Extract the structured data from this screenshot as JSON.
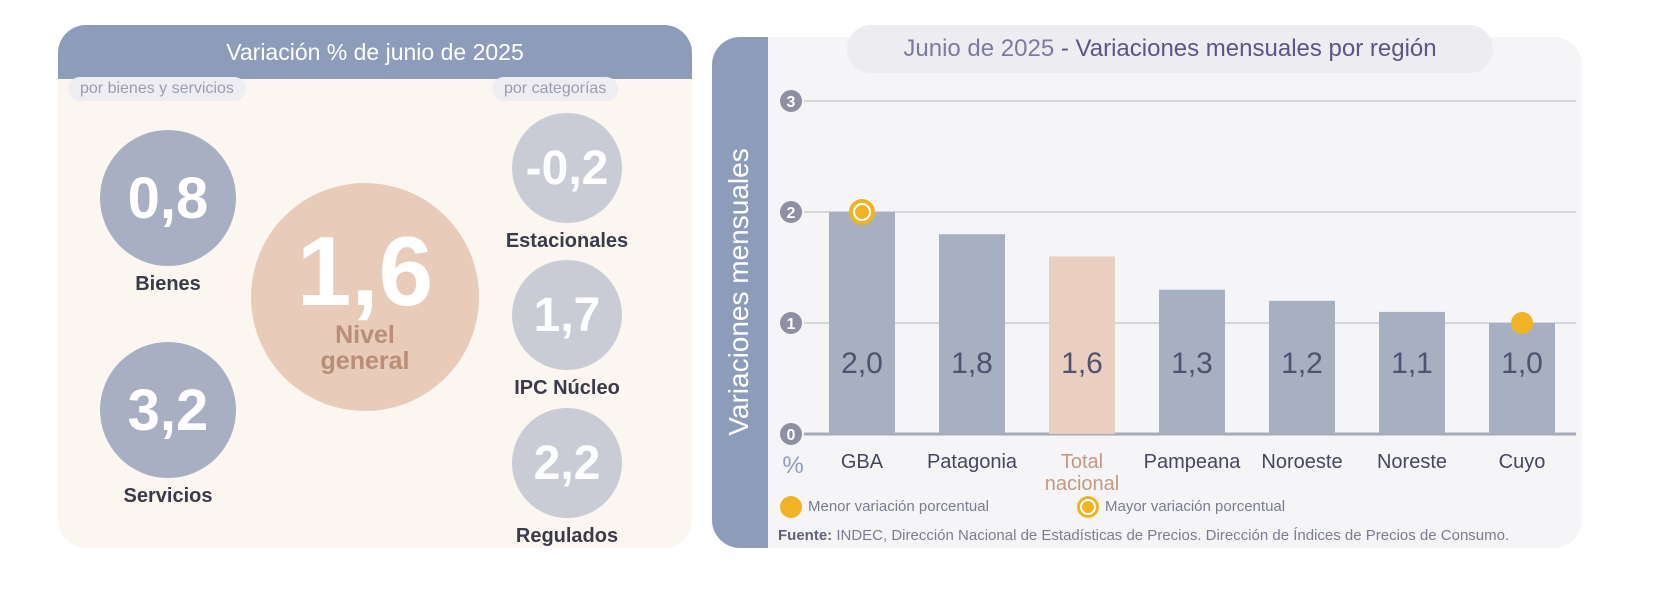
{
  "left_panel": {
    "header": "Variación % de junio de 2025",
    "label_goods_services": "por bienes y servicios",
    "label_categories": "por categorías",
    "main": {
      "value": "1,6",
      "label_line1": "Nivel",
      "label_line2": "general"
    },
    "goods": {
      "value": "0,8",
      "label": "Bienes"
    },
    "services": {
      "value": "3,2",
      "label": "Servicios"
    },
    "seasonal": {
      "value": "-0,2",
      "label": "Estacionales"
    },
    "core": {
      "value": "1,7",
      "label": "IPC Núcleo"
    },
    "regulated": {
      "value": "2,2",
      "label": "Regulados"
    }
  },
  "chart_title": {
    "date": "Junio de 2025",
    "sep": "-",
    "main": "Variaciones mensuales por región"
  },
  "chart_data": {
    "type": "bar",
    "ylabel": "Variaciones  mensuales",
    "unit": "%",
    "ylim": [
      0,
      3
    ],
    "yticks": [
      "0",
      "1",
      "2",
      "3"
    ],
    "grid": true,
    "categories": [
      "GBA",
      "Patagonia",
      "Total nacional",
      "Pampeana",
      "Noroeste",
      "Noreste",
      "Cuyo"
    ],
    "category_lines": [
      [
        "GBA"
      ],
      [
        "Patagonia"
      ],
      [
        "Total",
        "nacional"
      ],
      [
        "Pampeana"
      ],
      [
        "Noroeste"
      ],
      [
        "Noreste"
      ],
      [
        "Cuyo"
      ]
    ],
    "values": [
      2.0,
      1.8,
      1.6,
      1.3,
      1.2,
      1.1,
      1.0
    ],
    "value_labels": [
      "2,0",
      "1,8",
      "1,6",
      "1,3",
      "1,2",
      "1,1",
      "1,0"
    ],
    "highlight_category": "Total nacional",
    "markers": [
      {
        "category": "GBA",
        "kind": "max"
      },
      {
        "category": "Cuyo",
        "kind": "min"
      }
    ],
    "legend": {
      "min": "Menor variación porcentual",
      "max": "Mayor variación porcentual"
    }
  },
  "source": {
    "label": "Fuente:",
    "text": "INDEC, Dirección Nacional de Estadísticas de Precios. Dirección de Índices de Precios de Consumo."
  },
  "colors": {
    "header": "#8e9cbb",
    "bar": "#a6b0c0",
    "bar_highlight": "#eacfc0",
    "marker": "#f0b323",
    "grid": "#b4b6c2"
  }
}
